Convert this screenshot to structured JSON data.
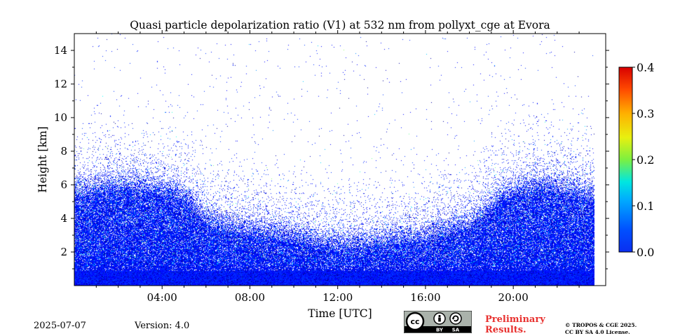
{
  "chart_data": {
    "type": "heatmap",
    "title": "Quasi particle depolarization ratio (V1) at 532 nm from pollyxt_cge at Evora",
    "xlabel": "Time [UTC]",
    "ylabel": "Height [km]",
    "xlim_hours": [
      0,
      23.7
    ],
    "ylim_km": [
      0,
      15
    ],
    "x_ticks": [
      {
        "hour": 4,
        "label": "04:00"
      },
      {
        "hour": 8,
        "label": "08:00"
      },
      {
        "hour": 12,
        "label": "12:00"
      },
      {
        "hour": 16,
        "label": "16:00"
      },
      {
        "hour": 20,
        "label": "20:00"
      }
    ],
    "y_ticks": [
      {
        "km": 2,
        "label": "2"
      },
      {
        "km": 4,
        "label": "4"
      },
      {
        "km": 6,
        "label": "6"
      },
      {
        "km": 8,
        "label": "8"
      },
      {
        "km": 10,
        "label": "10"
      },
      {
        "km": 12,
        "label": "12"
      },
      {
        "km": 14,
        "label": "14"
      }
    ],
    "colorbar": {
      "range": [
        0.0,
        0.4
      ],
      "ticks": [
        {
          "value": 0.0,
          "label": "0.0"
        },
        {
          "value": 0.1,
          "label": "0.1"
        },
        {
          "value": 0.2,
          "label": "0.2"
        },
        {
          "value": 0.3,
          "label": "0.3"
        },
        {
          "value": 0.4,
          "label": "0.4"
        }
      ],
      "colormap": "jet"
    },
    "dense_layer_top_km": [
      {
        "hour": 0,
        "km": 6.5
      },
      {
        "hour": 2,
        "km": 6.9
      },
      {
        "hour": 4,
        "km": 6.7
      },
      {
        "hour": 5,
        "km": 6.3
      },
      {
        "hour": 6,
        "km": 4.8
      },
      {
        "hour": 8,
        "km": 4.2
      },
      {
        "hour": 10,
        "km": 3.9
      },
      {
        "hour": 12,
        "km": 3.3
      },
      {
        "hour": 14,
        "km": 3.6
      },
      {
        "hour": 16,
        "km": 3.9
      },
      {
        "hour": 18,
        "km": 4.6
      },
      {
        "hour": 19.5,
        "km": 6.3
      },
      {
        "hour": 21,
        "km": 6.9
      },
      {
        "hour": 23.7,
        "km": 6.4
      }
    ],
    "typical_value_range": [
      0.0,
      0.2
    ]
  },
  "footer": {
    "date": "2025-07-07",
    "version": "Version: 4.0",
    "preliminary_line1": "Preliminary",
    "preliminary_line2": "Results.",
    "license_line1": "© TROPOS & CGE 2025.",
    "license_line2": "CC BY SA 4.0 License.",
    "cc_labels": {
      "cc": "cc",
      "by": "BY",
      "sa": "SA"
    }
  },
  "colors": {
    "preliminary": "#e8312f",
    "dominant_pixel": "#0a64d6"
  }
}
